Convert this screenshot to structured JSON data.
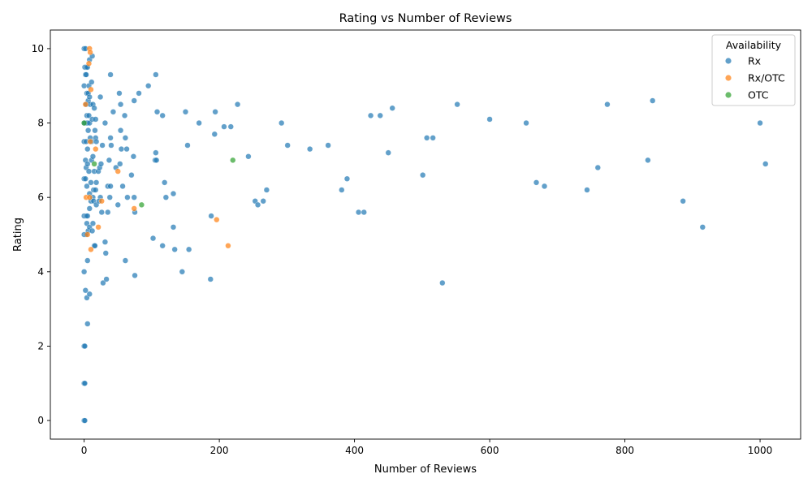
{
  "chart_data": {
    "type": "scatter",
    "title": "Rating vs Number of Reviews",
    "xlabel": "Number of Reviews",
    "ylabel": "Rating",
    "xlim": [
      -50,
      1060
    ],
    "ylim": [
      -0.5,
      10.5
    ],
    "xticks": [
      0,
      200,
      400,
      600,
      800,
      1000
    ],
    "yticks": [
      0,
      2,
      4,
      6,
      8,
      10
    ],
    "grid": false,
    "legend": {
      "title": "Availability",
      "placement": "top-right"
    },
    "series": [
      {
        "name": "Rx",
        "color": "#1f77b4",
        "points": [
          [
            0,
            10
          ],
          [
            2,
            10
          ],
          [
            1,
            9.5
          ],
          [
            3,
            9.5
          ],
          [
            5,
            9.5
          ],
          [
            2,
            9.3
          ],
          [
            3,
            9.3
          ],
          [
            0,
            9
          ],
          [
            7,
            9
          ],
          [
            11,
            9.1
          ],
          [
            8,
            9.7
          ],
          [
            12,
            9.8
          ],
          [
            3,
            8.5
          ],
          [
            6,
            8.6
          ],
          [
            9,
            8.5
          ],
          [
            13,
            8.5
          ],
          [
            15,
            8.4
          ],
          [
            4,
            8.8
          ],
          [
            6,
            8.8
          ],
          [
            8,
            8.7
          ],
          [
            24,
            8.7
          ],
          [
            39,
            9.3
          ],
          [
            52,
            8.8
          ],
          [
            54,
            8.5
          ],
          [
            74,
            8.6
          ],
          [
            81,
            8.8
          ],
          [
            95,
            9
          ],
          [
            106,
            9.3
          ],
          [
            0,
            8
          ],
          [
            2,
            8
          ],
          [
            5,
            8
          ],
          [
            8,
            8
          ],
          [
            4,
            8.2
          ],
          [
            7,
            8.2
          ],
          [
            12,
            8.1
          ],
          [
            17,
            8.1
          ],
          [
            31,
            8
          ],
          [
            43,
            8.3
          ],
          [
            60,
            8.2
          ],
          [
            108,
            8.3
          ],
          [
            116,
            8.2
          ],
          [
            150,
            8.3
          ],
          [
            194,
            8.3
          ],
          [
            227,
            8.5
          ],
          [
            0,
            7.5
          ],
          [
            3,
            7.5
          ],
          [
            5,
            7.3
          ],
          [
            6,
            7.8
          ],
          [
            9,
            7.6
          ],
          [
            11,
            7.5
          ],
          [
            16,
            7.8
          ],
          [
            17,
            7.6
          ],
          [
            18,
            7.5
          ],
          [
            27,
            7.4
          ],
          [
            39,
            7.6
          ],
          [
            40,
            7.4
          ],
          [
            54,
            7.8
          ],
          [
            55,
            7.3
          ],
          [
            61,
            7.6
          ],
          [
            63,
            7.3
          ],
          [
            73,
            7.1
          ],
          [
            106,
            7.2
          ],
          [
            153,
            7.4
          ],
          [
            170,
            8
          ],
          [
            193,
            7.7
          ],
          [
            207,
            7.9
          ],
          [
            217,
            7.9
          ],
          [
            2,
            7
          ],
          [
            3,
            6.8
          ],
          [
            5,
            6.9
          ],
          [
            7,
            6.7
          ],
          [
            11,
            7
          ],
          [
            13,
            7.1
          ],
          [
            15,
            6.7
          ],
          [
            21,
            6.7
          ],
          [
            23,
            6.8
          ],
          [
            25,
            6.9
          ],
          [
            37,
            7
          ],
          [
            47,
            6.8
          ],
          [
            53,
            6.9
          ],
          [
            70,
            6.6
          ],
          [
            105,
            7
          ],
          [
            107,
            7
          ],
          [
            0,
            6.5
          ],
          [
            2,
            6.5
          ],
          [
            4,
            6.3
          ],
          [
            8,
            6.1
          ],
          [
            10,
            6.4
          ],
          [
            14,
            6.2
          ],
          [
            17,
            6.2
          ],
          [
            18,
            6.4
          ],
          [
            24,
            6
          ],
          [
            35,
            6.3
          ],
          [
            39,
            6.3
          ],
          [
            57,
            6.3
          ],
          [
            64,
            6
          ],
          [
            74,
            6
          ],
          [
            119,
            6.4
          ],
          [
            121,
            6
          ],
          [
            132,
            6.1
          ],
          [
            0,
            5.5
          ],
          [
            3,
            5.5
          ],
          [
            5,
            5.5
          ],
          [
            4,
            5.3
          ],
          [
            8,
            5.7
          ],
          [
            10,
            5.9
          ],
          [
            13,
            6
          ],
          [
            14,
            5.9
          ],
          [
            18,
            5.8
          ],
          [
            22,
            5.9
          ],
          [
            26,
            5.6
          ],
          [
            35,
            5.6
          ],
          [
            38,
            6
          ],
          [
            50,
            5.8
          ],
          [
            75,
            5.6
          ],
          [
            0,
            5
          ],
          [
            3,
            5
          ],
          [
            6,
            5.1
          ],
          [
            8,
            5.2
          ],
          [
            12,
            5.1
          ],
          [
            13,
            5.3
          ],
          [
            15,
            4.7
          ],
          [
            16,
            4.7
          ],
          [
            31,
            4.8
          ],
          [
            32,
            4.5
          ],
          [
            102,
            4.9
          ],
          [
            116,
            4.7
          ],
          [
            132,
            5.2
          ],
          [
            134,
            4.6
          ],
          [
            155,
            4.6
          ],
          [
            188,
            5.5
          ],
          [
            0,
            4
          ],
          [
            5,
            4.3
          ],
          [
            61,
            4.3
          ],
          [
            2,
            3.5
          ],
          [
            4,
            3.3
          ],
          [
            8,
            3.4
          ],
          [
            28,
            3.7
          ],
          [
            33,
            3.8
          ],
          [
            75,
            3.9
          ],
          [
            145,
            4
          ],
          [
            187,
            3.8
          ],
          [
            5,
            2.6
          ],
          [
            0,
            2
          ],
          [
            1,
            2
          ],
          [
            0,
            1
          ],
          [
            1,
            1
          ],
          [
            0,
            0
          ],
          [
            1,
            0
          ],
          [
            243,
            7.1
          ],
          [
            253,
            5.9
          ],
          [
            257,
            5.8
          ],
          [
            265,
            5.9
          ],
          [
            270,
            6.2
          ],
          [
            292,
            8
          ],
          [
            301,
            7.4
          ],
          [
            334,
            7.3
          ],
          [
            361,
            7.4
          ],
          [
            381,
            6.2
          ],
          [
            389,
            6.5
          ],
          [
            406,
            5.6
          ],
          [
            414,
            5.6
          ],
          [
            424,
            8.2
          ],
          [
            438,
            8.2
          ],
          [
            450,
            7.2
          ],
          [
            456,
            8.4
          ],
          [
            501,
            6.6
          ],
          [
            507,
            7.6
          ],
          [
            516,
            7.6
          ],
          [
            530,
            3.7
          ],
          [
            552,
            8.5
          ],
          [
            600,
            8.1
          ],
          [
            654,
            8
          ],
          [
            669,
            6.4
          ],
          [
            681,
            6.3
          ],
          [
            744,
            6.2
          ],
          [
            760,
            6.8
          ],
          [
            774,
            8.5
          ],
          [
            834,
            7
          ],
          [
            841,
            8.6
          ],
          [
            886,
            5.9
          ],
          [
            915,
            5.2
          ],
          [
            1000,
            8
          ],
          [
            1008,
            6.9
          ]
        ]
      },
      {
        "name": "Rx/OTC",
        "color": "#ff7f0e",
        "points": [
          [
            8,
            10
          ],
          [
            9,
            9.9
          ],
          [
            7,
            9.6
          ],
          [
            10,
            8.9
          ],
          [
            2,
            8.5
          ],
          [
            9,
            7.5
          ],
          [
            17,
            7.3
          ],
          [
            50,
            6.7
          ],
          [
            3,
            6
          ],
          [
            8,
            6
          ],
          [
            26,
            5.9
          ],
          [
            74,
            5.7
          ],
          [
            196,
            5.4
          ],
          [
            21,
            5.2
          ],
          [
            5,
            5
          ],
          [
            10,
            4.6
          ],
          [
            213,
            4.7
          ]
        ]
      },
      {
        "name": "OTC",
        "color": "#2ca02c",
        "points": [
          [
            0,
            8
          ],
          [
            220,
            7
          ],
          [
            85,
            5.8
          ],
          [
            15,
            6.9
          ]
        ]
      }
    ]
  }
}
